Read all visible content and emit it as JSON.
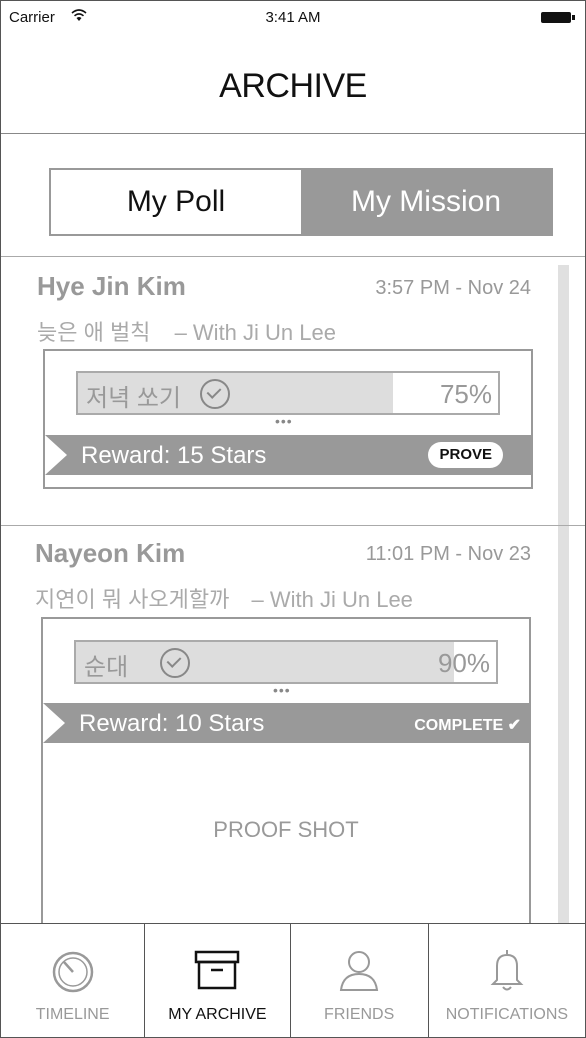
{
  "status_bar": {
    "carrier": "Carrier",
    "time": "3:41 AM"
  },
  "header": {
    "title": "ARCHIVE"
  },
  "segments": {
    "left": "My Poll",
    "right": "My Mission",
    "selected": "My Mission"
  },
  "cards": [
    {
      "name": "Hye Jin Kim",
      "timestamp": "3:57 PM - Nov 24",
      "title": "늦은 애 벌칙",
      "with": "– With Ji Un Lee",
      "task": "저녁 쏘기",
      "percent": "75%",
      "progress": 0.75,
      "reward": "Reward: 15 Stars",
      "action": "PROVE"
    },
    {
      "name": "Nayeon Kim",
      "timestamp": "11:01 PM - Nov 23",
      "title": "지연이 뭐 사오게할까",
      "with": "– With Ji Un Lee",
      "task": "순대",
      "percent": "90%",
      "progress": 0.9,
      "reward": "Reward: 10 Stars",
      "status": "COMPLETE",
      "proof_text": "PROOF SHOT"
    }
  ],
  "tabs": [
    {
      "label": "TIMELINE",
      "icon": "timer-icon",
      "active": false
    },
    {
      "label": "MY ARCHIVE",
      "icon": "archive-box-icon",
      "active": true
    },
    {
      "label": "FRIENDS",
      "icon": "person-icon",
      "active": false
    },
    {
      "label": "NOTIFICATIONS",
      "icon": "bell-icon",
      "active": false
    }
  ]
}
